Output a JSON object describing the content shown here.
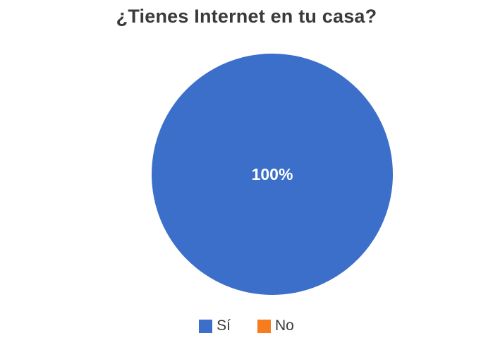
{
  "chart_data": {
    "type": "pie",
    "title": "¿Tienes Internet en tu casa?",
    "categories": [
      "Sí",
      "No"
    ],
    "values": [
      100,
      0
    ],
    "data_labels": [
      "100%",
      ""
    ],
    "colors": [
      "#3c6fc9",
      "#f57c1f"
    ],
    "legend_position": "bottom"
  }
}
